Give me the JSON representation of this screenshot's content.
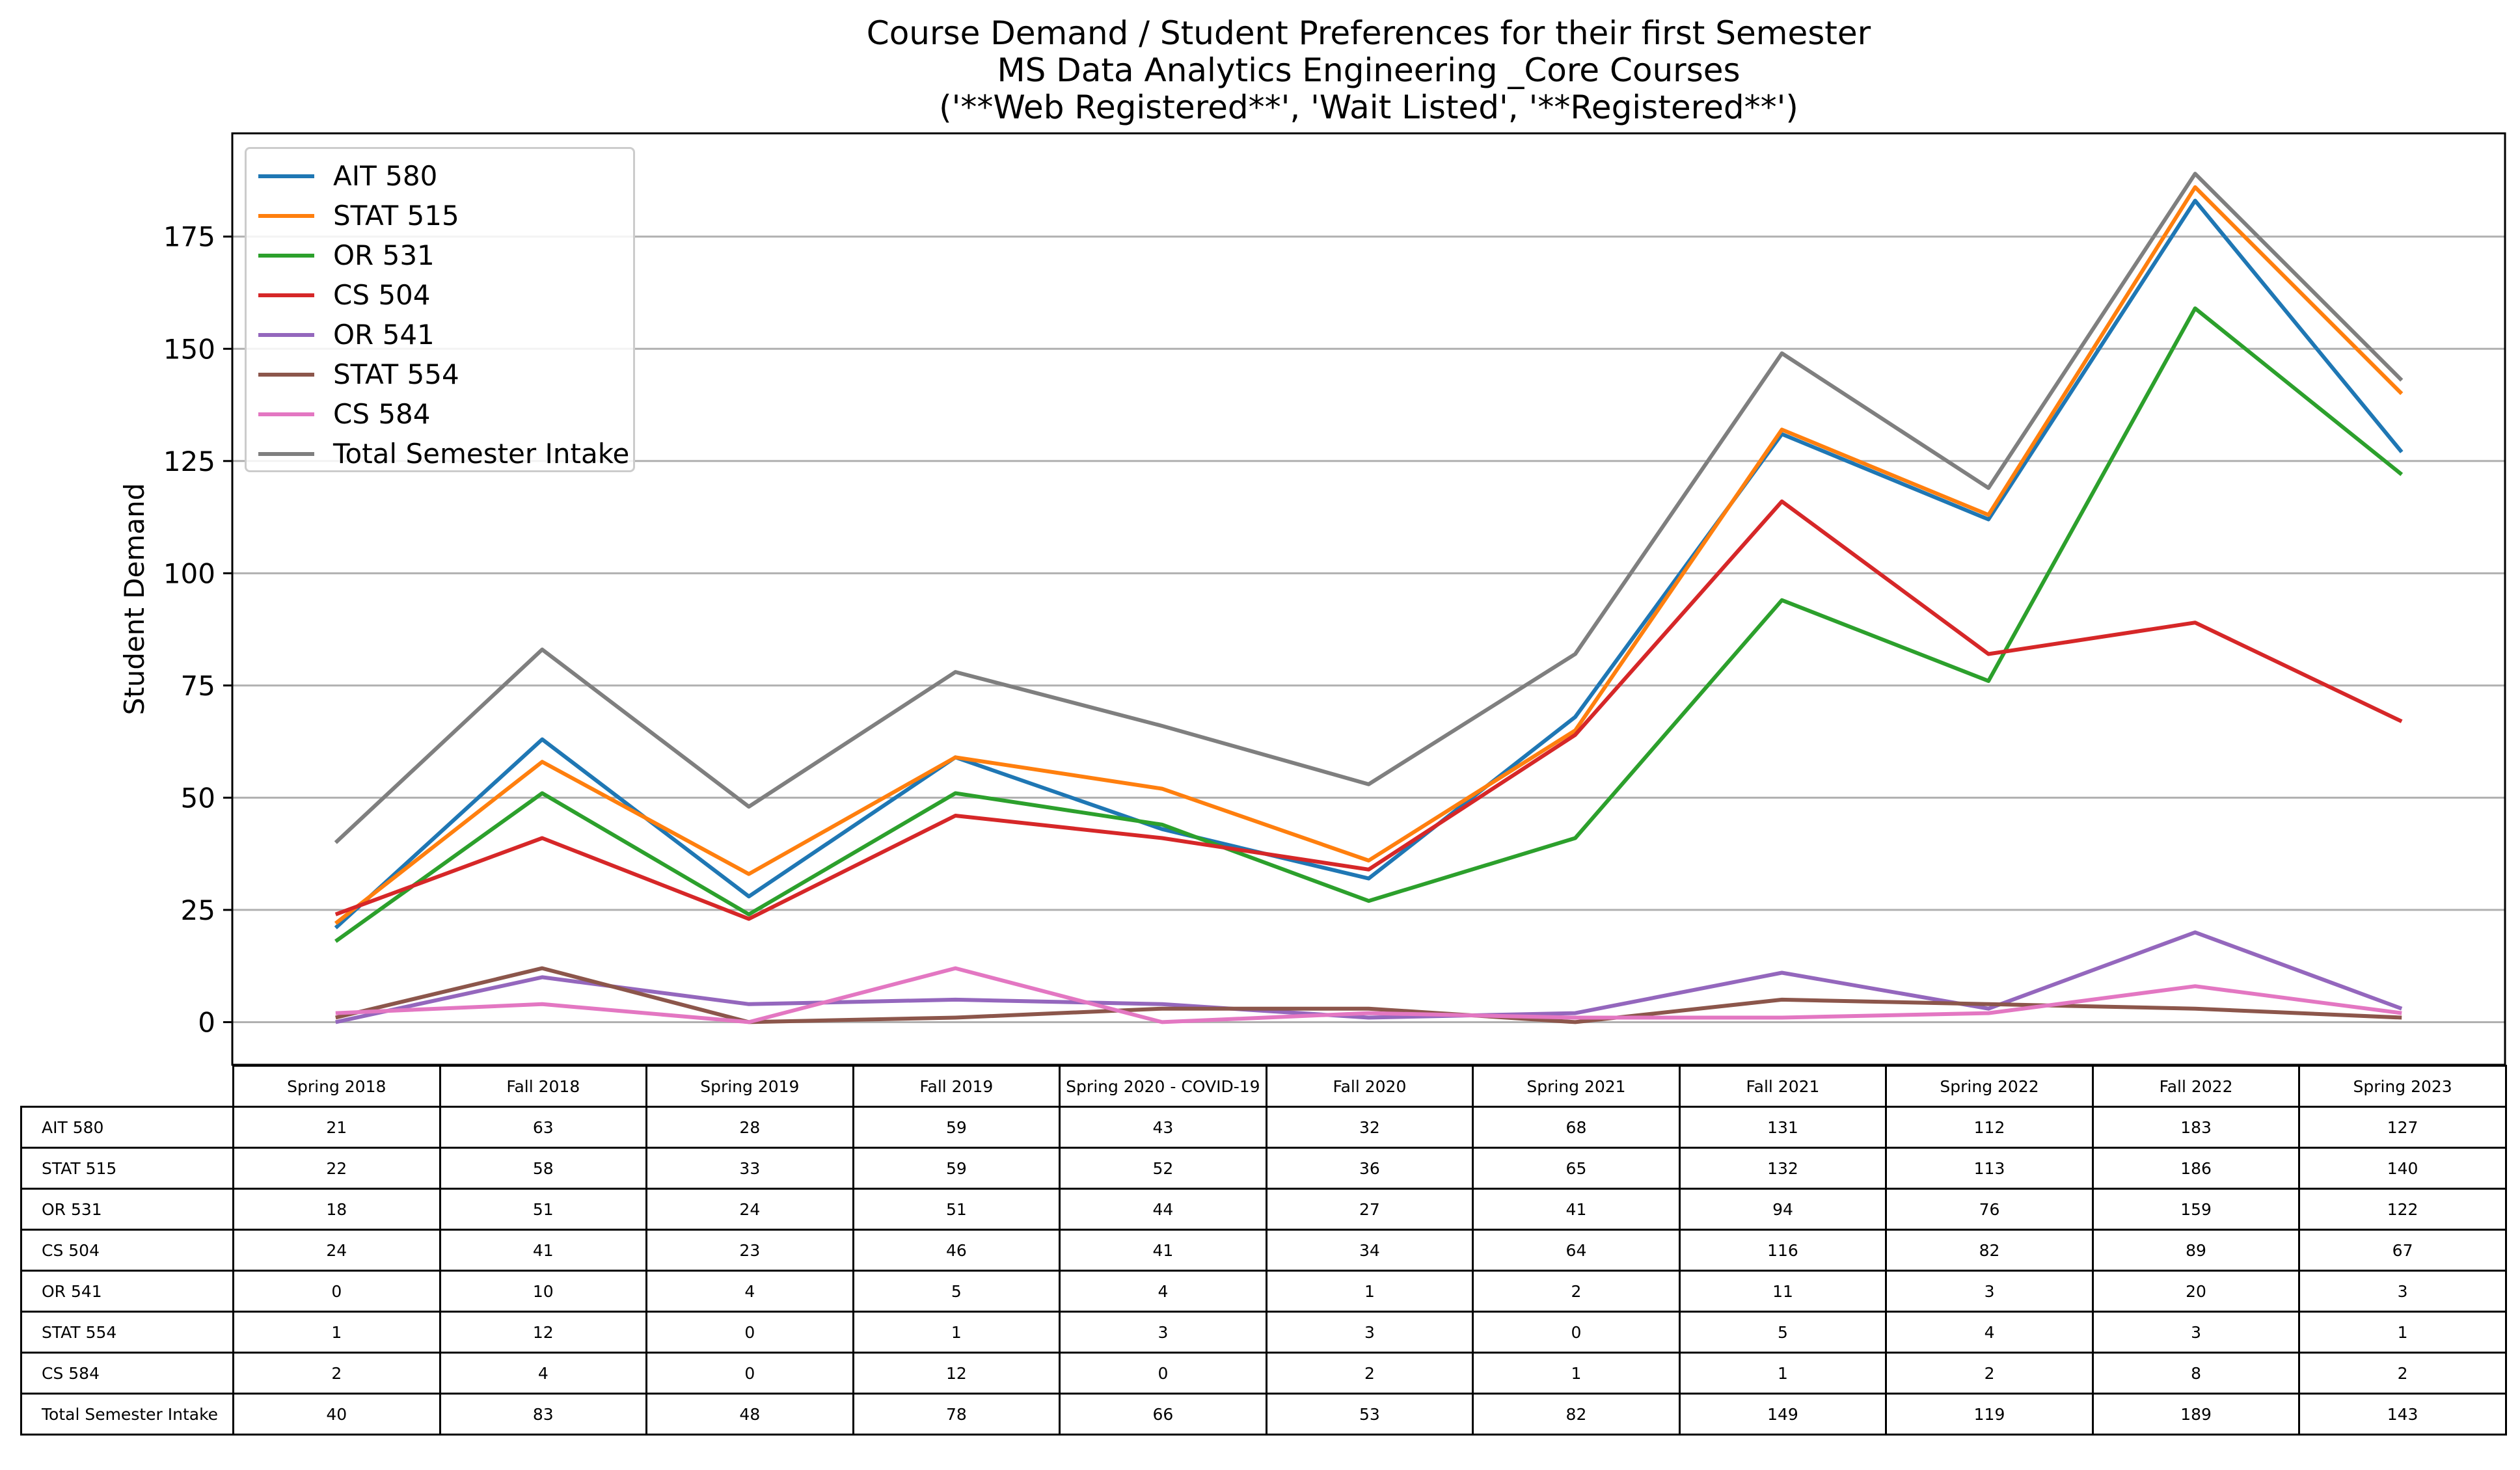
{
  "chart_data": {
    "type": "line",
    "title": [
      "Course Demand / Student Preferences for their first Semester",
      "MS Data Analytics Engineering _Core Courses",
      "('**Web Registered**', 'Wait Listed', '**Registered**')"
    ],
    "xlabel": "",
    "ylabel": "Student Demand",
    "ylim": [
      -9.5,
      198
    ],
    "yticks": [
      0,
      25,
      50,
      75,
      100,
      125,
      150,
      175
    ],
    "grid": "horizontal",
    "legend_position": "top-left",
    "categories": [
      "Spring 2018",
      "Fall 2018",
      "Spring 2019",
      "Fall 2019",
      "Spring 2020 - COVID-19",
      "Fall 2020",
      "Spring 2021",
      "Fall 2021",
      "Spring 2022",
      "Fall 2022",
      "Spring 2023"
    ],
    "series": [
      {
        "name": "AIT 580",
        "color": "#1f77b4",
        "values": [
          21,
          63,
          28,
          59,
          43,
          32,
          68,
          131,
          112,
          183,
          127
        ]
      },
      {
        "name": "STAT 515",
        "color": "#ff7f0e",
        "values": [
          22,
          58,
          33,
          59,
          52,
          36,
          65,
          132,
          113,
          186,
          140
        ]
      },
      {
        "name": "OR 531",
        "color": "#2ca02c",
        "values": [
          18,
          51,
          24,
          51,
          44,
          27,
          41,
          94,
          76,
          159,
          122
        ]
      },
      {
        "name": "CS 504",
        "color": "#d62728",
        "values": [
          24,
          41,
          23,
          46,
          41,
          34,
          64,
          116,
          82,
          89,
          67
        ]
      },
      {
        "name": "OR 541",
        "color": "#9467bd",
        "values": [
          0,
          10,
          4,
          5,
          4,
          1,
          2,
          11,
          3,
          20,
          3
        ]
      },
      {
        "name": "STAT 554",
        "color": "#8c564b",
        "values": [
          1,
          12,
          0,
          1,
          3,
          3,
          0,
          5,
          4,
          3,
          1
        ]
      },
      {
        "name": "CS 584",
        "color": "#e377c2",
        "values": [
          2,
          4,
          0,
          12,
          0,
          2,
          1,
          1,
          2,
          8,
          2
        ]
      },
      {
        "name": "Total Semester Intake",
        "color": "#7f7f7f",
        "values": [
          40,
          83,
          48,
          78,
          66,
          53,
          82,
          149,
          119,
          189,
          143
        ]
      }
    ],
    "table": "below"
  }
}
